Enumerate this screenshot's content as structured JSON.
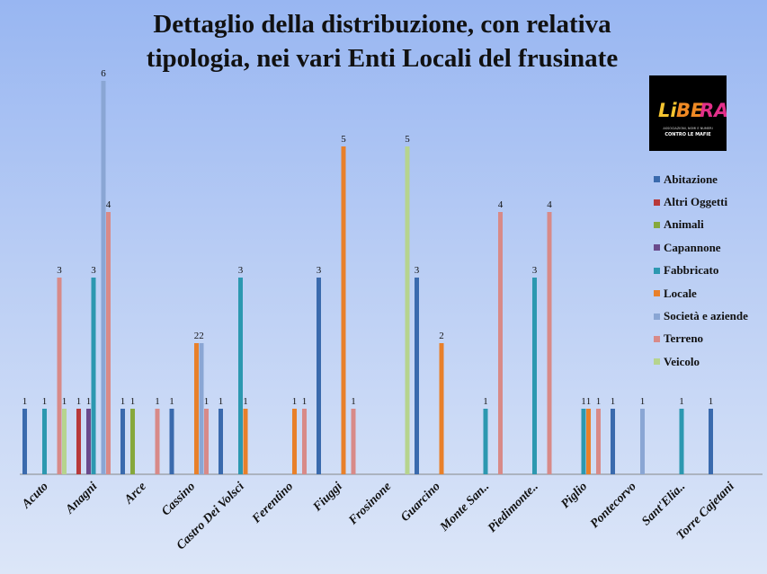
{
  "chart_data": {
    "type": "bar",
    "title": "Dettaglio della distribuzione, con relativa tipologia, nei vari Enti Locali del frusinate",
    "title_lines": [
      "Dettaglio della distribuzione, con relativa",
      "tipologia, nei vari Enti Locali del frusinate"
    ],
    "categories": [
      "Acuto",
      "Anagni",
      "Arce",
      "Cassino",
      "Castro Dei Volsci",
      "Ferentino",
      "Fiuggi",
      "Frosinone",
      "Guarcino",
      "Monte San..",
      "Piedimonte..",
      "Piglio",
      "Pontecorvo",
      "Sant'Elia..",
      "Torre Cajetani"
    ],
    "series": [
      {
        "name": "Abitazione",
        "color": "#3a6aad",
        "values": [
          1,
          0,
          1,
          1,
          1,
          0,
          3,
          0,
          3,
          0,
          0,
          0,
          1,
          0,
          1
        ]
      },
      {
        "name": "Altri Oggetti",
        "color": "#b8393a",
        "values": [
          0,
          1,
          0,
          0,
          0,
          0,
          0,
          0,
          0,
          0,
          0,
          0,
          0,
          0,
          0
        ]
      },
      {
        "name": "Animali",
        "color": "#86a83c",
        "values": [
          0,
          0,
          1,
          0,
          0,
          0,
          0,
          0,
          0,
          0,
          0,
          0,
          0,
          0,
          0
        ]
      },
      {
        "name": "Capannone",
        "color": "#6a4a8c",
        "values": [
          0,
          1,
          0,
          0,
          0,
          0,
          0,
          0,
          0,
          0,
          0,
          0,
          0,
          0,
          0
        ]
      },
      {
        "name": "Fabbricato",
        "color": "#2c98b0",
        "values": [
          1,
          3,
          0,
          0,
          3,
          0,
          0,
          0,
          0,
          1,
          3,
          1,
          0,
          1,
          0
        ]
      },
      {
        "name": "Locale",
        "color": "#e8802a",
        "values": [
          0,
          0,
          0,
          2,
          1,
          1,
          5,
          0,
          2,
          0,
          0,
          1,
          0,
          0,
          0
        ]
      },
      {
        "name": "Società e aziende",
        "color": "#8aa6d4",
        "values": [
          0,
          6,
          0,
          2,
          0,
          0,
          0,
          0,
          0,
          0,
          0,
          0,
          1,
          0,
          0
        ]
      },
      {
        "name": "Terreno",
        "color": "#d88a88",
        "values": [
          3,
          4,
          1,
          1,
          0,
          1,
          1,
          0,
          0,
          4,
          4,
          1,
          0,
          0,
          0
        ]
      },
      {
        "name": "Veicolo",
        "color": "#b6d48e",
        "values": [
          1,
          0,
          0,
          0,
          0,
          0,
          0,
          5,
          0,
          0,
          0,
          0,
          0,
          0,
          0
        ]
      }
    ],
    "ylim": [
      0,
      6
    ],
    "grid": false,
    "legend_position": "right",
    "data_labels": true
  },
  "logo": {
    "text": "LIBERA",
    "subtitle": "ASSOCIAZIONI, NOMI E NUMERI CONTRO LE MAFIE"
  }
}
